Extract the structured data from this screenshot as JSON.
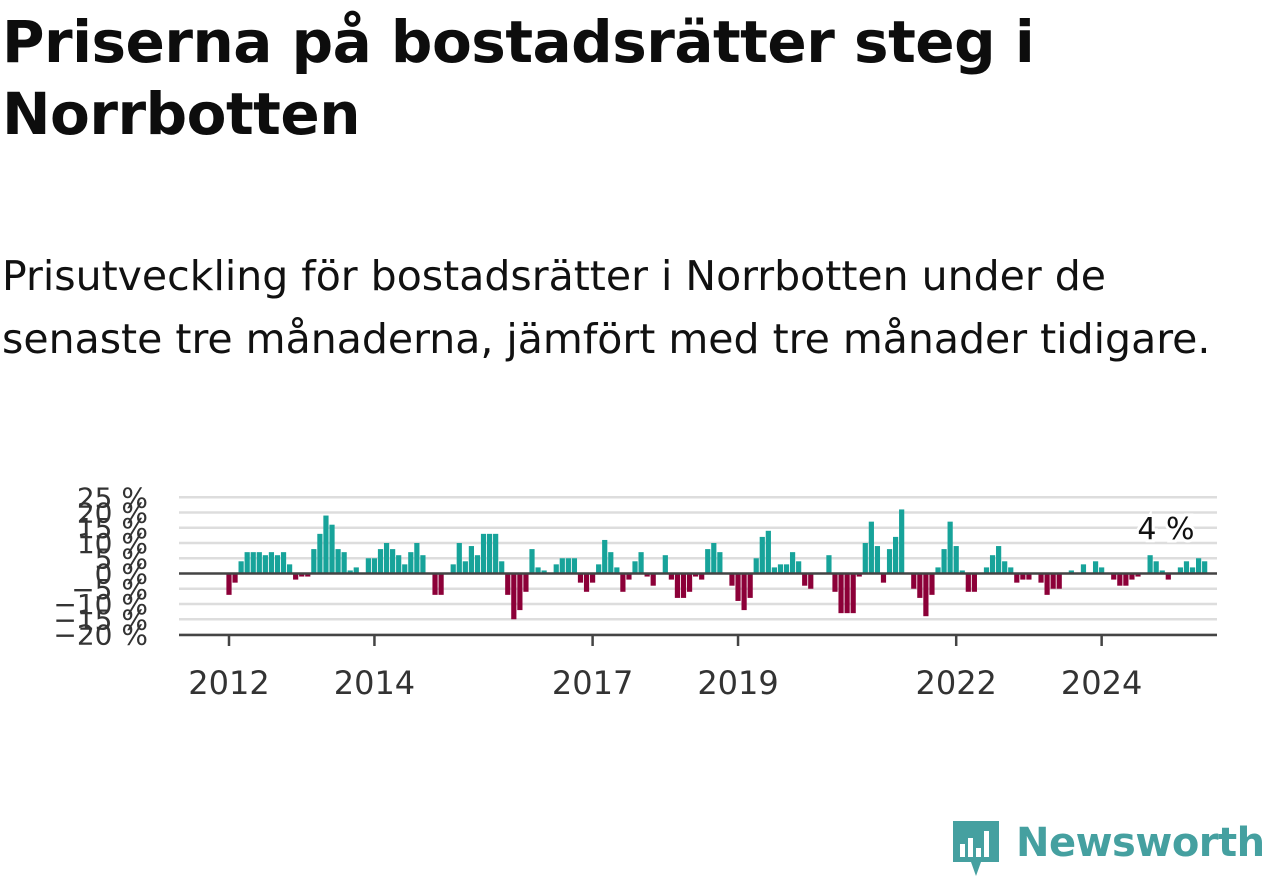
{
  "header": {
    "title": "Priserna på bostadsrätter steg i Norrbotten",
    "subtitle": "Prisutveckling för bostadsrätter i Norrbotten under de senaste tre månaderna, jämfört med tre månader tidigare."
  },
  "brand": {
    "name": "Newsworthy",
    "color": "#45a0a0",
    "icon": "newsworthy-logo-icon"
  },
  "colors": {
    "positive": "#17a39a",
    "negative": "#8c0038",
    "grid": "#dddddd",
    "axis": "#444444"
  },
  "chart_data": {
    "type": "bar",
    "title": "Priserna på bostadsrätter steg i Norrbotten",
    "ylim": [
      -20,
      25
    ],
    "yticks": [
      -20,
      -15,
      -10,
      -5,
      0,
      5,
      10,
      15,
      20,
      25
    ],
    "ytick_labels": [
      "−20 %",
      "−15 %",
      "−10 %",
      "−5 %",
      "0 %",
      "5 %",
      "10 %",
      "15 %",
      "20 %",
      "25 %"
    ],
    "xticks": [
      {
        "label": "2012",
        "month": 0
      },
      {
        "label": "2014",
        "month": 24
      },
      {
        "label": "2017",
        "month": 60
      },
      {
        "label": "2019",
        "month": 84
      },
      {
        "label": "2022",
        "month": 120
      },
      {
        "label": "2024",
        "month": 144
      }
    ],
    "start_label": "2012-01",
    "grid": true,
    "annotation": "4 %",
    "values": [
      -7,
      -3,
      4,
      7,
      7,
      7,
      6,
      7,
      6,
      7,
      3,
      -2,
      -1,
      -1,
      8,
      13,
      19,
      16,
      8,
      7,
      1,
      2,
      0,
      5,
      5,
      8,
      10,
      8,
      6,
      3,
      7,
      10,
      6,
      0,
      -7,
      -7,
      0,
      3,
      10,
      4,
      9,
      6,
      13,
      13,
      13,
      4,
      -7,
      -15,
      -12,
      -6,
      8,
      2,
      1,
      0,
      3,
      5,
      5,
      5,
      -3,
      -6,
      -3,
      3,
      11,
      7,
      2,
      -6,
      -2,
      4,
      7,
      -1,
      -4,
      0,
      6,
      -2,
      -8,
      -8,
      -6,
      -1,
      -2,
      8,
      10,
      7,
      0,
      -4,
      -9,
      -12,
      -8,
      5,
      12,
      14,
      2,
      3,
      3,
      7,
      4,
      -4,
      -5,
      0,
      0,
      6,
      -6,
      -13,
      -13,
      -13,
      -1,
      10,
      17,
      9,
      -3,
      8,
      12,
      21,
      0,
      -5,
      -8,
      -14,
      -7,
      2,
      8,
      17,
      9,
      1,
      -6,
      -6,
      0,
      2,
      6,
      9,
      4,
      2,
      -3,
      -2,
      -2,
      0,
      -3,
      -7,
      -5,
      -5,
      0,
      1,
      0,
      3,
      0,
      4,
      2,
      0,
      -2,
      -4,
      -4,
      -2,
      -1,
      0,
      6,
      4,
      1,
      -2,
      0,
      2,
      4,
      2,
      5,
      4
    ]
  }
}
